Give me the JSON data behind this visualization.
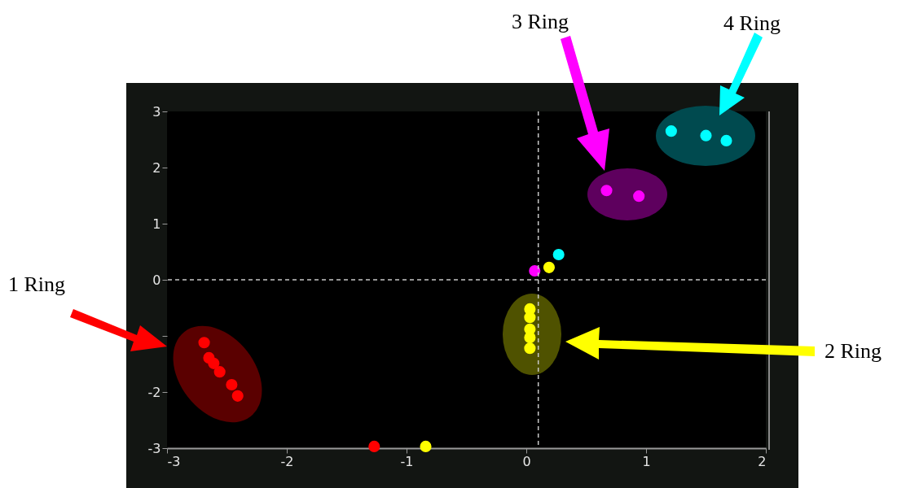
{
  "chart_data": {
    "type": "scatter",
    "xlim": [
      -3,
      2
    ],
    "ylim": [
      -3,
      3
    ],
    "xticks": [
      -3,
      -2,
      -1,
      0,
      1,
      2
    ],
    "yticks": [
      -3,
      -2,
      {
        "value": -1,
        "label": null
      },
      0,
      1,
      2,
      3
    ],
    "grid": false,
    "legend": false,
    "marker": "circle",
    "annotations": [
      "1 Ring",
      "2 Ring",
      "3 Ring",
      "4 Ring"
    ],
    "ref_lines": [
      {
        "axis": "y",
        "value": 0,
        "line_style": "dashed"
      },
      {
        "axis": "x",
        "value": 0.1,
        "line_style": "dashed"
      }
    ],
    "series": [
      {
        "color": "#ff0000",
        "x": [
          -2.69,
          -2.65,
          -2.61,
          -2.56,
          -2.46,
          -2.41,
          -1.27
        ],
        "values": [
          -1.12,
          -1.39,
          -1.49,
          -1.64,
          -1.87,
          -2.07,
          -2.97
        ]
      },
      {
        "color": "#ffff00",
        "x": [
          0.03,
          0.03,
          0.03,
          0.03,
          0.03,
          0.19,
          -0.84
        ],
        "values": [
          -0.52,
          -0.67,
          -0.88,
          -1.03,
          -1.22,
          0.22,
          -2.97
        ]
      },
      {
        "color": "#ff00ff",
        "x": [
          0.67,
          0.94,
          0.07
        ],
        "values": [
          1.59,
          1.49,
          0.16
        ]
      },
      {
        "color": "#00ffff",
        "x": [
          1.21,
          1.5,
          1.67,
          0.27
        ],
        "values": [
          2.65,
          2.57,
          2.48,
          0.45
        ]
      }
    ]
  }
}
